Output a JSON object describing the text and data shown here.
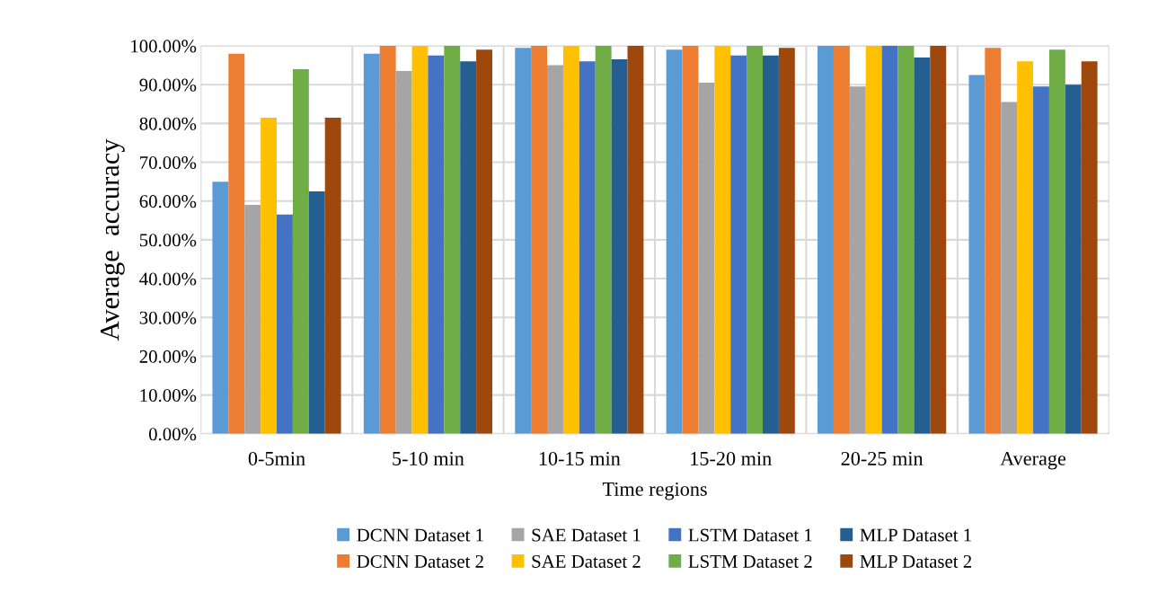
{
  "chart_data": {
    "type": "bar",
    "xlabel": "Time regions",
    "ylabel": "Average  accuracy",
    "categories": [
      "0-5min",
      "5-10 min",
      "10-15 min",
      "15-20 min",
      "20-25 min",
      "Average"
    ],
    "series": [
      {
        "name": "DCNN Dataset 1",
        "color": "#5b9bd5",
        "values": [
          65,
          98,
          99.5,
          99,
          100,
          92.5
        ]
      },
      {
        "name": "DCNN Dataset 2",
        "color": "#ed7d31",
        "values": [
          98,
          100,
          100,
          100,
          100,
          99.5
        ]
      },
      {
        "name": "SAE Dataset 1",
        "color": "#a5a5a5",
        "values": [
          59,
          93.5,
          95,
          90.5,
          89.5,
          85.5
        ]
      },
      {
        "name": "SAE Dataset 2",
        "color": "#ffc000",
        "values": [
          81.5,
          100,
          100,
          100,
          100,
          96
        ]
      },
      {
        "name": "LSTM Dataset 1",
        "color": "#4472c4",
        "values": [
          56.5,
          97.5,
          96,
          97.5,
          100,
          89.5
        ]
      },
      {
        "name": "LSTM Dataset 2",
        "color": "#70ad47",
        "values": [
          94,
          100,
          100,
          100,
          100,
          99
        ]
      },
      {
        "name": "MLP Dataset 1",
        "color": "#255e91",
        "values": [
          62.5,
          96,
          96.5,
          97.5,
          97,
          90
        ]
      },
      {
        "name": "MLP Dataset 2",
        "color": "#9e480e",
        "values": [
          81.5,
          99,
          100,
          99.5,
          100,
          96
        ]
      }
    ],
    "ylim": [
      0,
      100
    ],
    "yticks": [
      {
        "value": 0,
        "label": "0.00%"
      },
      {
        "value": 10,
        "label": "10.00%"
      },
      {
        "value": 20,
        "label": "20.00%"
      },
      {
        "value": 30,
        "label": "30.00%"
      },
      {
        "value": 40,
        "label": "40.00%"
      },
      {
        "value": 50,
        "label": "50.00%"
      },
      {
        "value": 60,
        "label": "60.00%"
      },
      {
        "value": 70,
        "label": "70.00%"
      },
      {
        "value": 80,
        "label": "80.00%"
      },
      {
        "value": 90,
        "label": "90.00%"
      },
      {
        "value": 100,
        "label": "100.00%"
      }
    ],
    "grid": "y",
    "legend": "bottom"
  }
}
